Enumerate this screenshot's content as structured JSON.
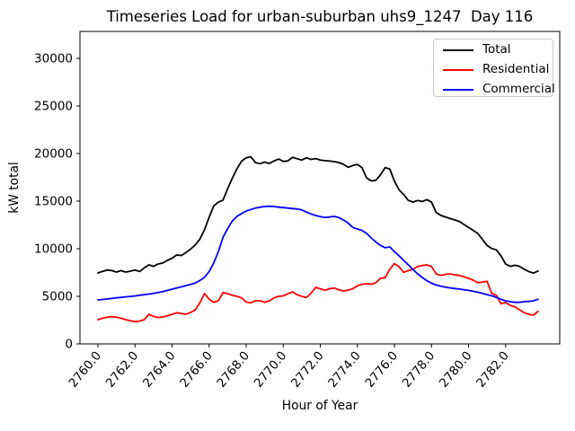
{
  "chart_data": {
    "type": "line",
    "title": "Timeseries Load for urban-suburban uhs9_1247  Day 116",
    "xlabel": "Hour of Year",
    "ylabel": "kW total",
    "xlim": [
      2759.03,
      2784.92
    ],
    "ylim": [
      0,
      32830
    ],
    "grid": false,
    "x_start": 2760.0,
    "x_step": 0.25,
    "x_ticks": {
      "values": [
        2760,
        2762,
        2764,
        2766,
        2768,
        2770,
        2772,
        2774,
        2776,
        2778,
        2780,
        2782
      ],
      "labels": [
        "2760.0",
        "2762.0",
        "2764.0",
        "2766.0",
        "2768.0",
        "2770.0",
        "2772.0",
        "2774.0",
        "2776.0",
        "2778.0",
        "2780.0",
        "2782.0"
      ]
    },
    "y_ticks": {
      "values": [
        0,
        5000,
        10000,
        15000,
        20000,
        25000,
        30000
      ],
      "labels": [
        "0",
        "5000",
        "10000",
        "15000",
        "20000",
        "25000",
        "30000"
      ]
    },
    "legend": {
      "position": "upper right",
      "frame": true
    },
    "series": [
      {
        "name": "Total",
        "color": "#000000",
        "values": [
          7450,
          7620,
          7760,
          7700,
          7550,
          7700,
          7550,
          7640,
          7760,
          7600,
          7990,
          8300,
          8150,
          8400,
          8500,
          8770,
          9000,
          9350,
          9280,
          9600,
          9950,
          10400,
          11000,
          12000,
          13300,
          14500,
          14900,
          15100,
          16300,
          17400,
          18400,
          19200,
          19560,
          19660,
          19050,
          18930,
          19100,
          18960,
          19220,
          19420,
          19170,
          19230,
          19600,
          19460,
          19310,
          19560,
          19390,
          19470,
          19310,
          19250,
          19210,
          19150,
          19060,
          18870,
          18560,
          18740,
          18860,
          18520,
          17440,
          17120,
          17190,
          17760,
          18530,
          18370,
          17100,
          16180,
          15700,
          15080,
          14910,
          15070,
          14960,
          15160,
          14900,
          13820,
          13500,
          13340,
          13170,
          13030,
          12870,
          12550,
          12240,
          11920,
          11600,
          10970,
          10350,
          10030,
          9880,
          9250,
          8400,
          8150,
          8260,
          8150,
          7850,
          7600,
          7430,
          7660
        ]
      },
      {
        "name": "Residential",
        "color": "#ff0000",
        "values": [
          2550,
          2700,
          2800,
          2860,
          2800,
          2700,
          2550,
          2420,
          2350,
          2400,
          2550,
          3100,
          2900,
          2770,
          2820,
          2960,
          3100,
          3270,
          3200,
          3120,
          3300,
          3570,
          4300,
          5280,
          4700,
          4370,
          4530,
          5400,
          5280,
          5100,
          5000,
          4840,
          4400,
          4320,
          4530,
          4530,
          4380,
          4530,
          4840,
          5000,
          5050,
          5260,
          5470,
          5160,
          5000,
          4870,
          5320,
          5940,
          5790,
          5640,
          5790,
          5880,
          5690,
          5570,
          5640,
          5790,
          6110,
          6260,
          6320,
          6260,
          6420,
          6890,
          6960,
          7850,
          8430,
          8100,
          7520,
          7700,
          7830,
          8140,
          8240,
          8300,
          8140,
          7360,
          7200,
          7300,
          7360,
          7250,
          7200,
          7060,
          6890,
          6700,
          6420,
          6500,
          6580,
          5310,
          5100,
          4220,
          4350,
          4060,
          3900,
          3590,
          3270,
          3110,
          3020,
          3420
        ]
      },
      {
        "name": "Commercial",
        "color": "#0000ff",
        "values": [
          4620,
          4670,
          4720,
          4780,
          4840,
          4890,
          4940,
          4990,
          5040,
          5110,
          5170,
          5240,
          5300,
          5400,
          5500,
          5620,
          5750,
          5870,
          5990,
          6120,
          6250,
          6400,
          6650,
          7000,
          7600,
          8500,
          9700,
          11200,
          12100,
          12900,
          13400,
          13700,
          13960,
          14120,
          14270,
          14370,
          14430,
          14460,
          14430,
          14370,
          14320,
          14270,
          14220,
          14180,
          14080,
          13850,
          13650,
          13490,
          13380,
          13280,
          13330,
          13400,
          13280,
          13020,
          12700,
          12240,
          12080,
          11920,
          11600,
          11130,
          10700,
          10350,
          10100,
          10190,
          9700,
          9250,
          8770,
          8300,
          7830,
          7360,
          6980,
          6640,
          6380,
          6190,
          6060,
          5960,
          5890,
          5820,
          5760,
          5700,
          5620,
          5530,
          5430,
          5310,
          5180,
          5060,
          4890,
          4690,
          4530,
          4430,
          4370,
          4370,
          4430,
          4460,
          4530,
          4690
        ]
      }
    ]
  },
  "colors": {
    "background": "#ffffff",
    "axes": "#000000",
    "legend_border": "#c9c9c9"
  }
}
